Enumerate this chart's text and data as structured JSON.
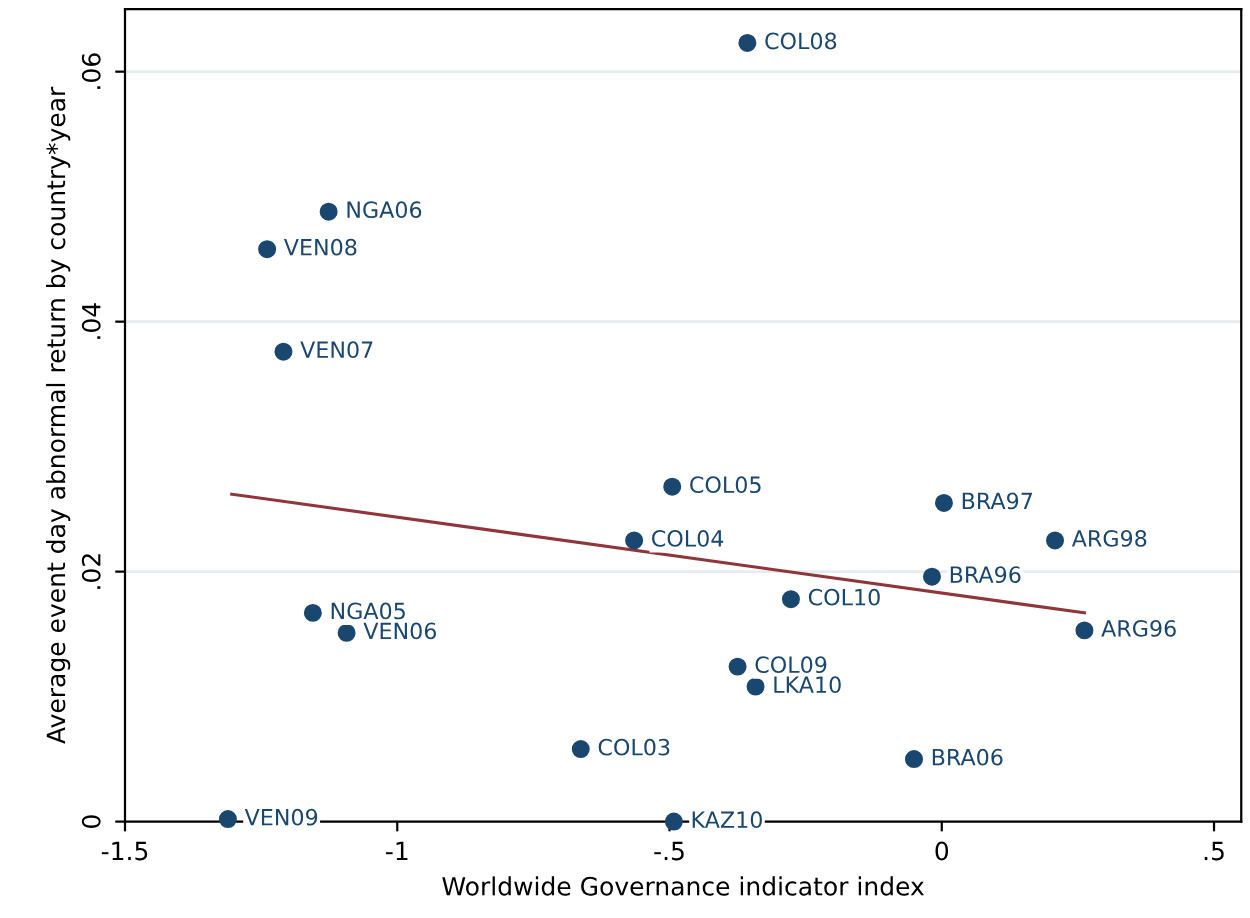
{
  "chart_data": {
    "type": "scatter",
    "xlabel": "Worldwide Governance indicator index",
    "ylabel": "Average event day abnormal return by country*year",
    "xlim": [
      -1.5,
      0.55
    ],
    "ylim": [
      0,
      0.065
    ],
    "xticks": [
      {
        "value": -1.5,
        "label": "-1.5"
      },
      {
        "value": -1,
        "label": "-1"
      },
      {
        "value": -0.5,
        "label": "-.5"
      },
      {
        "value": 0,
        "label": "0"
      },
      {
        "value": 0.5,
        "label": ".5"
      }
    ],
    "yticks": [
      {
        "value": 0,
        "label": "0"
      },
      {
        "value": 0.02,
        "label": ".02"
      },
      {
        "value": 0.04,
        "label": ".04"
      },
      {
        "value": 0.06,
        "label": ".06"
      }
    ],
    "grid": "y",
    "series": [
      {
        "marker": "circle",
        "color": "#1a476f",
        "x": [
          -0.357,
          -1.126,
          -1.239,
          -1.209,
          -0.495,
          0.004,
          0.208,
          -0.565,
          -0.018,
          -0.277,
          -1.155,
          0.262,
          -1.093,
          -0.375,
          -0.342,
          -0.663,
          -0.051,
          -1.311,
          -0.492
        ],
        "values": [
          0.0623,
          0.0488,
          0.0458,
          0.0376,
          0.0268,
          0.0255,
          0.0225,
          0.0225,
          0.0196,
          0.0178,
          0.0167,
          0.0153,
          0.0151,
          0.0124,
          0.0108,
          0.0058,
          0.005,
          0.0002,
          0.0
        ]
      },
      {
        "type": "line",
        "marker": "none",
        "color": "#90353b",
        "x": [
          -1.304,
          0.262
        ],
        "values": [
          0.0262,
          0.0167
        ]
      }
    ],
    "annotations": [
      {
        "text": "COL08",
        "x": -0.357,
        "y": 0.0623
      },
      {
        "text": "NGA06",
        "x": -1.126,
        "y": 0.0488
      },
      {
        "text": "VEN08",
        "x": -1.239,
        "y": 0.0458
      },
      {
        "text": "VEN07",
        "x": -1.209,
        "y": 0.0376
      },
      {
        "text": "COL05",
        "x": -0.495,
        "y": 0.0268
      },
      {
        "text": "BRA97",
        "x": 0.004,
        "y": 0.0255
      },
      {
        "text": "ARG98",
        "x": 0.208,
        "y": 0.0225
      },
      {
        "text": "COL04",
        "x": -0.565,
        "y": 0.0225
      },
      {
        "text": "BRA96",
        "x": -0.018,
        "y": 0.0196
      },
      {
        "text": "COL10",
        "x": -0.277,
        "y": 0.0178
      },
      {
        "text": "NGA05",
        "x": -1.155,
        "y": 0.0167
      },
      {
        "text": "ARG96",
        "x": 0.262,
        "y": 0.0153
      },
      {
        "text": "VEN06",
        "x": -1.093,
        "y": 0.0151
      },
      {
        "text": "COL09",
        "x": -0.375,
        "y": 0.0124
      },
      {
        "text": "LKA10",
        "x": -0.342,
        "y": 0.0108
      },
      {
        "text": "COL03",
        "x": -0.663,
        "y": 0.0058
      },
      {
        "text": "BRA06",
        "x": -0.051,
        "y": 0.005
      },
      {
        "text": "VEN09",
        "x": -1.311,
        "y": 0.0002
      },
      {
        "text": "KAZ10",
        "x": -0.492,
        "y": 0.0
      }
    ]
  }
}
